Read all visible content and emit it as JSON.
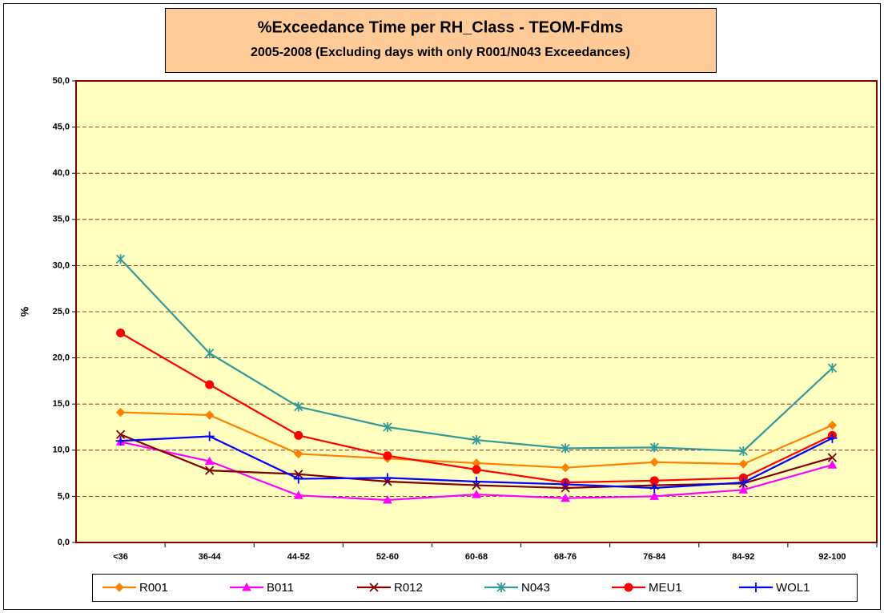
{
  "chart_data": {
    "type": "line",
    "title": "%Exceedance Time per RH_Class - TEOM-Fdms",
    "subtitle": "2005-2008 (Excluding days with only R001/N043 Exceedances)",
    "y_label": "%",
    "categories": [
      "<36",
      "36-44",
      "44-52",
      "52-60",
      "60-68",
      "68-76",
      "76-84",
      "84-92",
      "92-100"
    ],
    "series": [
      {
        "name": "R001",
        "color": "#ff8000",
        "marker": "diamond",
        "values": [
          14.1,
          13.8,
          9.6,
          9.1,
          8.6,
          8.1,
          8.7,
          8.5,
          12.7
        ]
      },
      {
        "name": "B011",
        "color": "#ff00ff",
        "marker": "triangle",
        "values": [
          10.9,
          8.8,
          5.1,
          4.6,
          5.2,
          4.8,
          5.0,
          5.7,
          8.4
        ]
      },
      {
        "name": "R012",
        "color": "#800000",
        "marker": "x",
        "values": [
          11.7,
          7.8,
          7.4,
          6.6,
          6.2,
          5.9,
          6.2,
          6.4,
          9.2
        ]
      },
      {
        "name": "N043",
        "color": "#339999",
        "marker": "asterisk",
        "values": [
          30.7,
          20.5,
          14.7,
          12.5,
          11.1,
          10.2,
          10.3,
          9.9,
          18.9
        ]
      },
      {
        "name": "MEU1",
        "color": "#ff0000",
        "marker": "circle",
        "values": [
          22.7,
          17.1,
          11.6,
          9.4,
          7.9,
          6.5,
          6.7,
          7.0,
          11.6
        ]
      },
      {
        "name": "WOL1",
        "color": "#0000ff",
        "marker": "plus",
        "values": [
          11.0,
          11.5,
          6.9,
          7.0,
          6.6,
          6.3,
          5.9,
          6.5,
          11.3
        ]
      }
    ],
    "ylim": [
      0,
      50
    ],
    "yticks": [
      {
        "value": 0,
        "label": "0,0"
      },
      {
        "value": 5,
        "label": "5,0"
      },
      {
        "value": 10,
        "label": "10,0"
      },
      {
        "value": 15,
        "label": "15,0"
      },
      {
        "value": 20,
        "label": "20,0"
      },
      {
        "value": 25,
        "label": "25,0"
      },
      {
        "value": 30,
        "label": "30,0"
      },
      {
        "value": 35,
        "label": "35,0"
      },
      {
        "value": 40,
        "label": "40,0"
      },
      {
        "value": 45,
        "label": "45,0"
      },
      {
        "value": 50,
        "label": "50,0"
      }
    ],
    "grid": true,
    "legend": "bottom"
  }
}
